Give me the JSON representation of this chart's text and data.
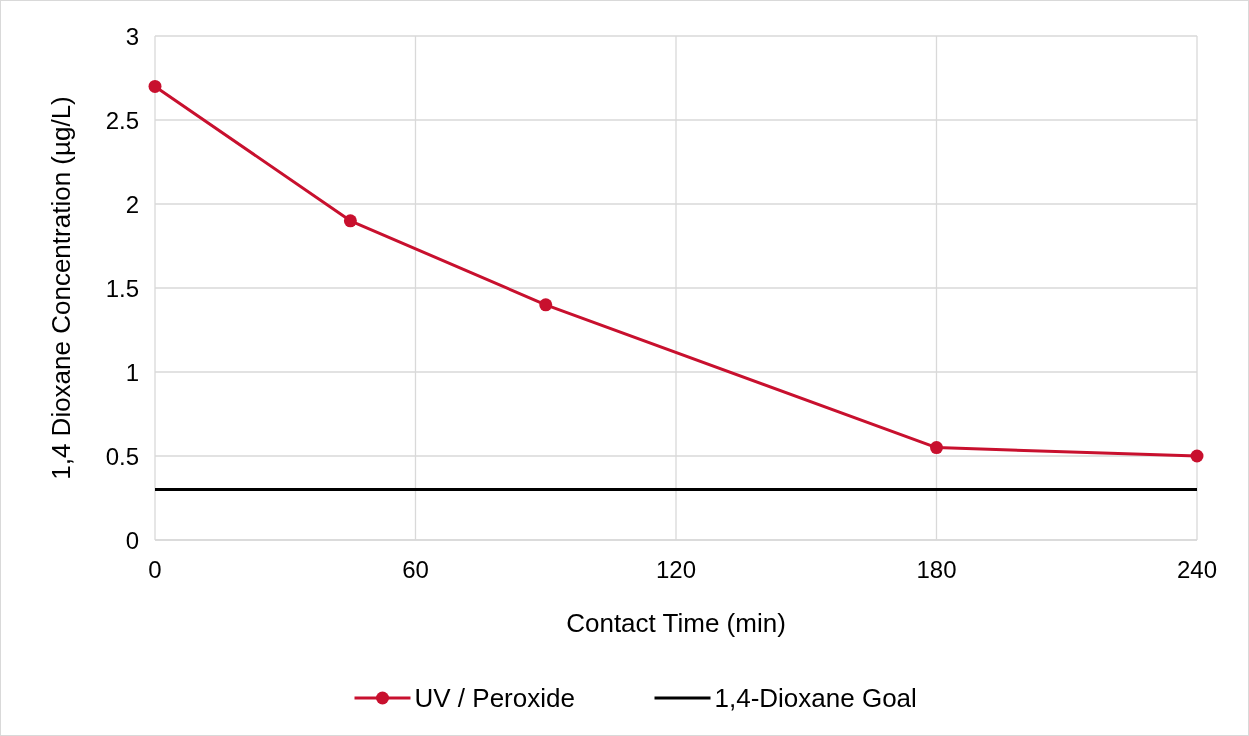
{
  "chart_data": {
    "type": "line",
    "xlabel": "Contact Time (min)",
    "ylabel": "1,4 Dioxane Concentration (µg/L)",
    "xlim": [
      0,
      240
    ],
    "xticks": [
      0,
      60,
      120,
      180,
      240
    ],
    "ylim": [
      0,
      3
    ],
    "yticks": [
      0,
      0.5,
      1,
      1.5,
      2,
      2.5,
      3
    ],
    "grid": true,
    "legend": "bottom",
    "series": [
      {
        "name": "UV / Peroxide",
        "color": "#c8102e",
        "marker": "circle",
        "x": [
          0,
          45,
          90,
          180,
          240
        ],
        "values": [
          2.7,
          1.9,
          1.4,
          0.55,
          0.5
        ]
      },
      {
        "name": "1,4-Dioxane Goal",
        "color": "#000000",
        "marker": "none",
        "x": [
          0,
          240
        ],
        "values": [
          0.3,
          0.3
        ]
      }
    ]
  }
}
